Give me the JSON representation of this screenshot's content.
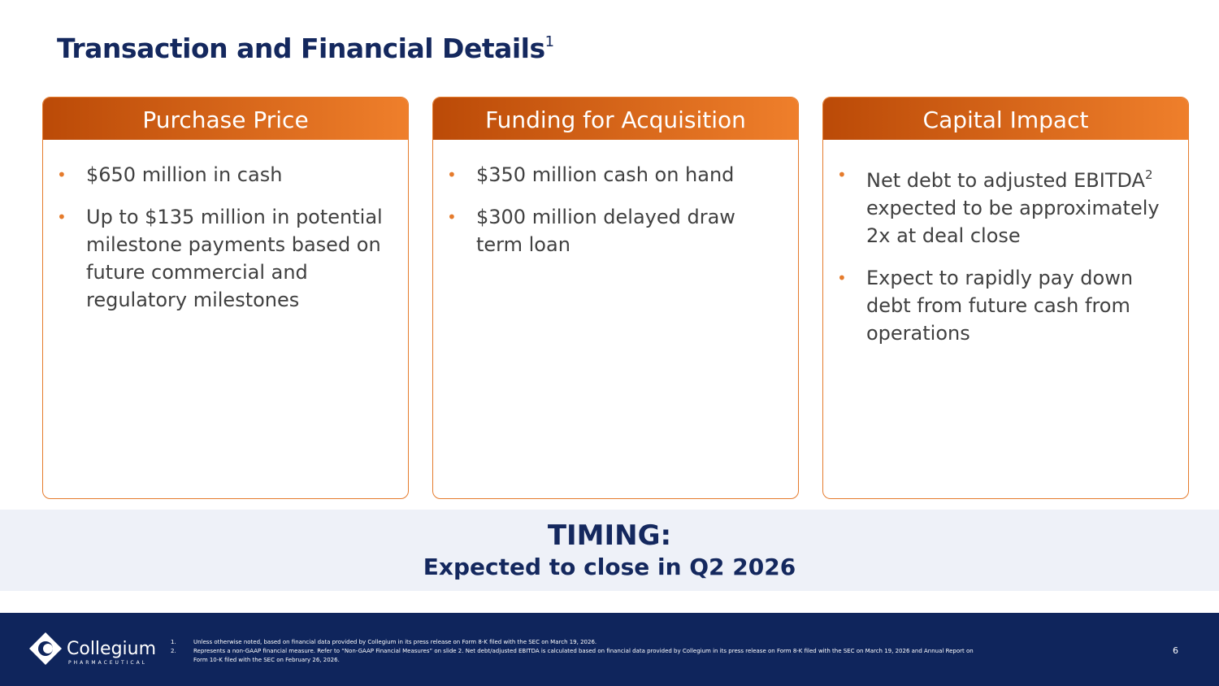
{
  "header": {
    "title": "Transaction and Financial Details",
    "title_ref": "1"
  },
  "cards": [
    {
      "title": "Purchase Price",
      "bullets": [
        {
          "text": "$650 million in cash"
        },
        {
          "text": "Up to $135 million in potential milestone payments based on future commercial and regulatory milestones"
        }
      ]
    },
    {
      "title": "Funding for Acquisition",
      "bullets": [
        {
          "text": "$350 million cash on hand"
        },
        {
          "text": "$300 million delayed draw term loan"
        }
      ]
    },
    {
      "title": "Capital Impact",
      "bullets": [
        {
          "text": "Net debt to adjusted EBITDA",
          "ref": "2",
          "after": "expected to be approximately 2x at deal close"
        },
        {
          "text": "Expect to rapidly pay down debt from future cash from operations"
        }
      ]
    }
  ],
  "timing": {
    "label": "TIMING:",
    "text": "Expected to close in Q2 2026"
  },
  "footer": {
    "logo": "Collegium",
    "logo_sub": "PHARMACEUTICAL",
    "notes": [
      {
        "marker": "1.",
        "text": "Unless otherwise noted, based on financial data provided by Collegium in its press release on Form 8-K filed with the SEC on March 19, 2026."
      },
      {
        "marker": "2.",
        "text": "Represents a non-GAAP financial measure. Refer to “Non-GAAP Financial Measures” on slide 2. Net debt/adjusted EBITDA is calculated based on financial data provided by Collegium in its press release on Form 8-K filed with the SEC on March 19, 2026 and Annual Report on Form 10-K filed with the SEC on February 26, 2026."
      }
    ],
    "page": "6"
  }
}
